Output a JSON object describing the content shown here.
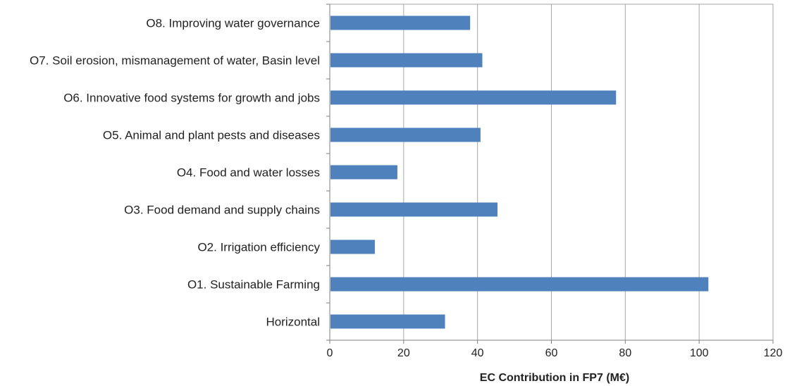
{
  "chart_data": {
    "type": "bar",
    "orientation": "horizontal",
    "categories": [
      "O8. Improving water governance",
      "O7. Soil erosion, mismanagement of water, Basin level",
      "O6. Innovative food systems for growth and jobs",
      "O5. Animal and plant pests and diseases",
      "O4. Food and water losses",
      "O3. Food demand and supply chains",
      "O2. Irrigation efficiency",
      "O1. Sustainable Farming",
      "Horizontal"
    ],
    "values": [
      38,
      41.3,
      77.5,
      40.8,
      18.3,
      45.4,
      12.2,
      102.5,
      31.2
    ],
    "xlabel": "EC Contribution  in FP7  (M€)",
    "ylabel": "",
    "xlim": [
      0,
      120
    ],
    "xticks": [
      "0",
      "20",
      "40",
      "60",
      "80",
      "100",
      "120"
    ],
    "grid": "vertical",
    "legend": "none",
    "bar_color": "#4F81BD",
    "grid_color": "#A6A6A6",
    "axis_color": "#7F7F7F"
  }
}
